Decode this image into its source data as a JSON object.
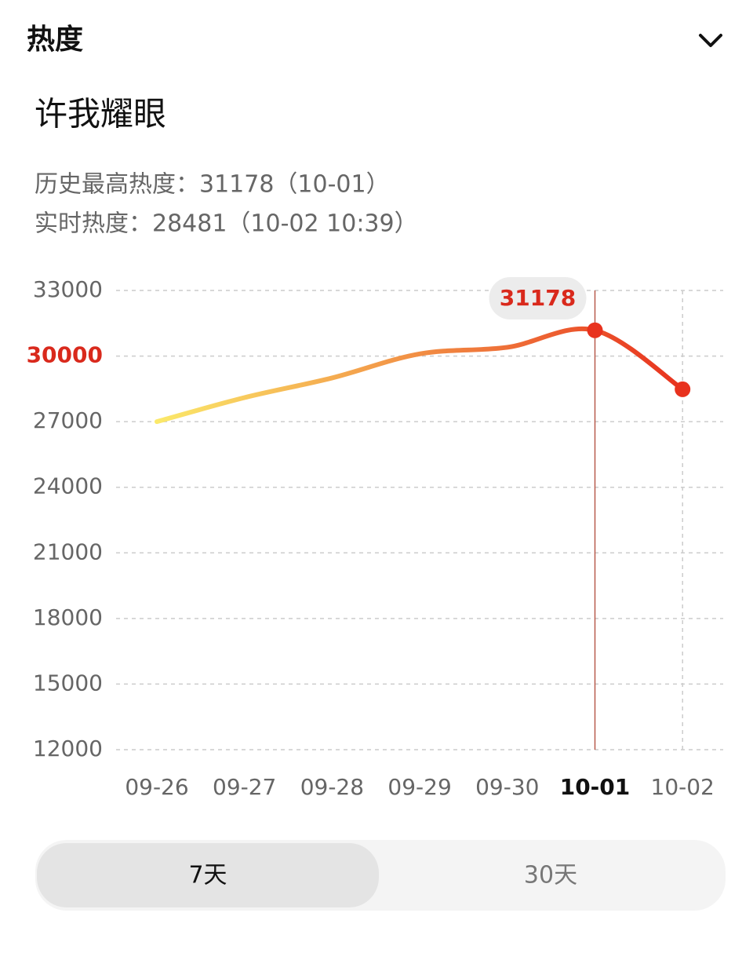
{
  "header": {
    "title": "热度"
  },
  "item": {
    "title": "许我耀眼",
    "stats": [
      "历史最高热度：31178（10-01）",
      "实时热度：28481（10-02 10:39）"
    ]
  },
  "chart_data": {
    "type": "line",
    "categories": [
      "09-26",
      "09-27",
      "09-28",
      "09-29",
      "09-30",
      "10-01",
      "10-02"
    ],
    "values": [
      27000,
      28100,
      29000,
      30100,
      30400,
      31178,
      28481
    ],
    "color_start": "#fbe96a",
    "color_end": "#e8321e",
    "ylim": [
      12000,
      33000
    ],
    "yticks": [
      12000,
      15000,
      18000,
      21000,
      24000,
      27000,
      30000,
      33000
    ],
    "grid": true,
    "highlight": {
      "ytick": 30000,
      "ytick_color": "#d9291c",
      "category": "10-01"
    }
  },
  "tabs": [
    "7天",
    "30天"
  ]
}
